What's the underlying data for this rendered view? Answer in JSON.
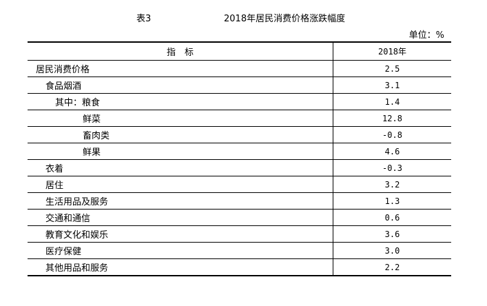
{
  "table_label": "表3",
  "title": "2018年居民消费价格涨跌幅度",
  "unit": "单位：%",
  "headers": {
    "indicator": "指　标",
    "year": "2018年"
  },
  "rows": [
    {
      "name": "居民消费价格",
      "value": "2.5",
      "level": 0
    },
    {
      "name": "食品烟酒",
      "value": "3.1",
      "level": 1
    },
    {
      "name": "其中：粮食",
      "value": "1.4",
      "level": 2
    },
    {
      "name": "鲜菜",
      "value": "12.8",
      "level": 3
    },
    {
      "name": "畜肉类",
      "value": "-0.8",
      "level": 3
    },
    {
      "name": "鲜果",
      "value": "4.6",
      "level": 3
    },
    {
      "name": "衣着",
      "value": "-0.3",
      "level": 1
    },
    {
      "name": "居住",
      "value": "3.2",
      "level": 1
    },
    {
      "name": "生活用品及服务",
      "value": "1.3",
      "level": 1
    },
    {
      "name": "交通和通信",
      "value": "0.6",
      "level": 1
    },
    {
      "name": "教育文化和娱乐",
      "value": "3.6",
      "level": 1
    },
    {
      "name": "医疗保健",
      "value": "3.0",
      "level": 1
    },
    {
      "name": "其他用品和服务",
      "value": "2.2",
      "level": 1
    }
  ]
}
